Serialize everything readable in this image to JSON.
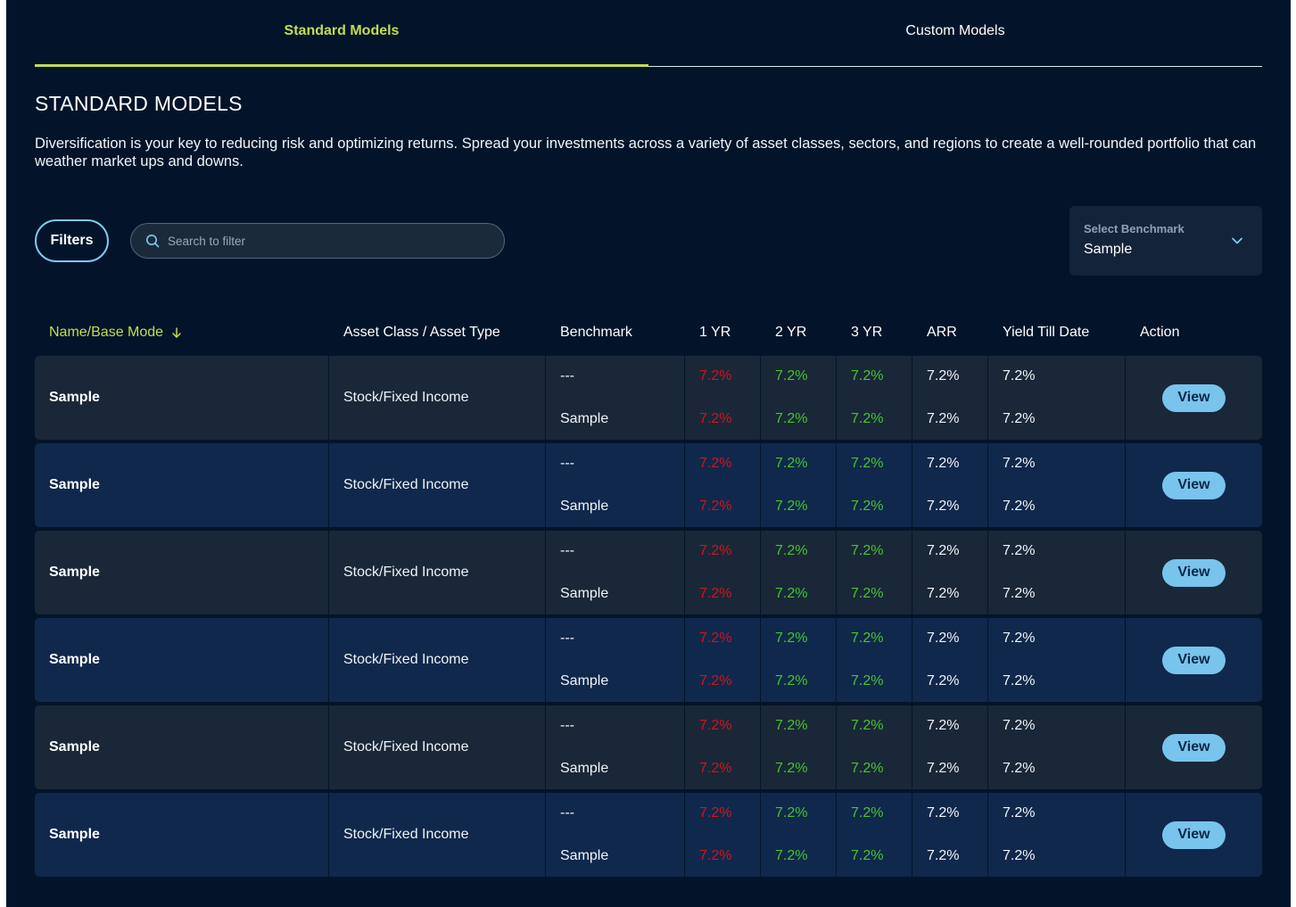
{
  "tabs": [
    {
      "label": "Standard Models",
      "active": true
    },
    {
      "label": "Custom Models",
      "active": false
    }
  ],
  "page": {
    "title": "STANDARD MODELS",
    "description": "Diversification is your key to reducing risk and optimizing returns. Spread your investments across a variety of asset classes, sectors, and regions to create a well-rounded portfolio that can weather market ups and downs."
  },
  "filters": {
    "button_label": "Filters",
    "search_placeholder": "Search to filter",
    "search_value": ""
  },
  "benchmark": {
    "label": "Select Benchmark",
    "value": "Sample",
    "icon": "chevron-down-icon"
  },
  "table": {
    "headers": [
      "Name/Base Mode",
      "Asset Class / Asset Type",
      "Benchmark",
      "1 YR",
      "2 YR",
      "3 YR",
      "ARR",
      "Yield Till Date",
      "Action"
    ],
    "sorted_column": "Name/Base Mode",
    "rows": [
      {
        "name": "Sample",
        "asset": "Stock/Fixed Income",
        "benchmark": [
          "---",
          "Sample"
        ],
        "yr1": [
          "7.2%",
          "7.2%"
        ],
        "yr2": [
          "7.2%",
          "7.2%"
        ],
        "yr3": [
          "7.2%",
          "7.2%"
        ],
        "arr": [
          "7.2%",
          "7.2%"
        ],
        "ytd": [
          "7.2%",
          "7.2%"
        ],
        "action": "View"
      },
      {
        "name": "Sample",
        "asset": "Stock/Fixed Income",
        "benchmark": [
          "---",
          "Sample"
        ],
        "yr1": [
          "7.2%",
          "7.2%"
        ],
        "yr2": [
          "7.2%",
          "7.2%"
        ],
        "yr3": [
          "7.2%",
          "7.2%"
        ],
        "arr": [
          "7.2%",
          "7.2%"
        ],
        "ytd": [
          "7.2%",
          "7.2%"
        ],
        "action": "View"
      },
      {
        "name": "Sample",
        "asset": "Stock/Fixed Income",
        "benchmark": [
          "---",
          "Sample"
        ],
        "yr1": [
          "7.2%",
          "7.2%"
        ],
        "yr2": [
          "7.2%",
          "7.2%"
        ],
        "yr3": [
          "7.2%",
          "7.2%"
        ],
        "arr": [
          "7.2%",
          "7.2%"
        ],
        "ytd": [
          "7.2%",
          "7.2%"
        ],
        "action": "View"
      },
      {
        "name": "Sample",
        "asset": "Stock/Fixed Income",
        "benchmark": [
          "---",
          "Sample"
        ],
        "yr1": [
          "7.2%",
          "7.2%"
        ],
        "yr2": [
          "7.2%",
          "7.2%"
        ],
        "yr3": [
          "7.2%",
          "7.2%"
        ],
        "arr": [
          "7.2%",
          "7.2%"
        ],
        "ytd": [
          "7.2%",
          "7.2%"
        ],
        "action": "View"
      },
      {
        "name": "Sample",
        "asset": "Stock/Fixed Income",
        "benchmark": [
          "---",
          "Sample"
        ],
        "yr1": [
          "7.2%",
          "7.2%"
        ],
        "yr2": [
          "7.2%",
          "7.2%"
        ],
        "yr3": [
          "7.2%",
          "7.2%"
        ],
        "arr": [
          "7.2%",
          "7.2%"
        ],
        "ytd": [
          "7.2%",
          "7.2%"
        ],
        "action": "View"
      },
      {
        "name": "Sample",
        "asset": "Stock/Fixed Income",
        "benchmark": [
          "---",
          "Sample"
        ],
        "yr1": [
          "7.2%",
          "7.2%"
        ],
        "yr2": [
          "7.2%",
          "7.2%"
        ],
        "yr3": [
          "7.2%",
          "7.2%"
        ],
        "arr": [
          "7.2%",
          "7.2%"
        ],
        "ytd": [
          "7.2%",
          "7.2%"
        ],
        "action": "View"
      }
    ]
  },
  "colors": {
    "background": "#03142a",
    "accent": "#c3dc52",
    "negative": "#d3131d",
    "positive": "#45c52c",
    "button": "#78c4ec",
    "row": "#1a2738",
    "row_alt": "#10284c"
  }
}
